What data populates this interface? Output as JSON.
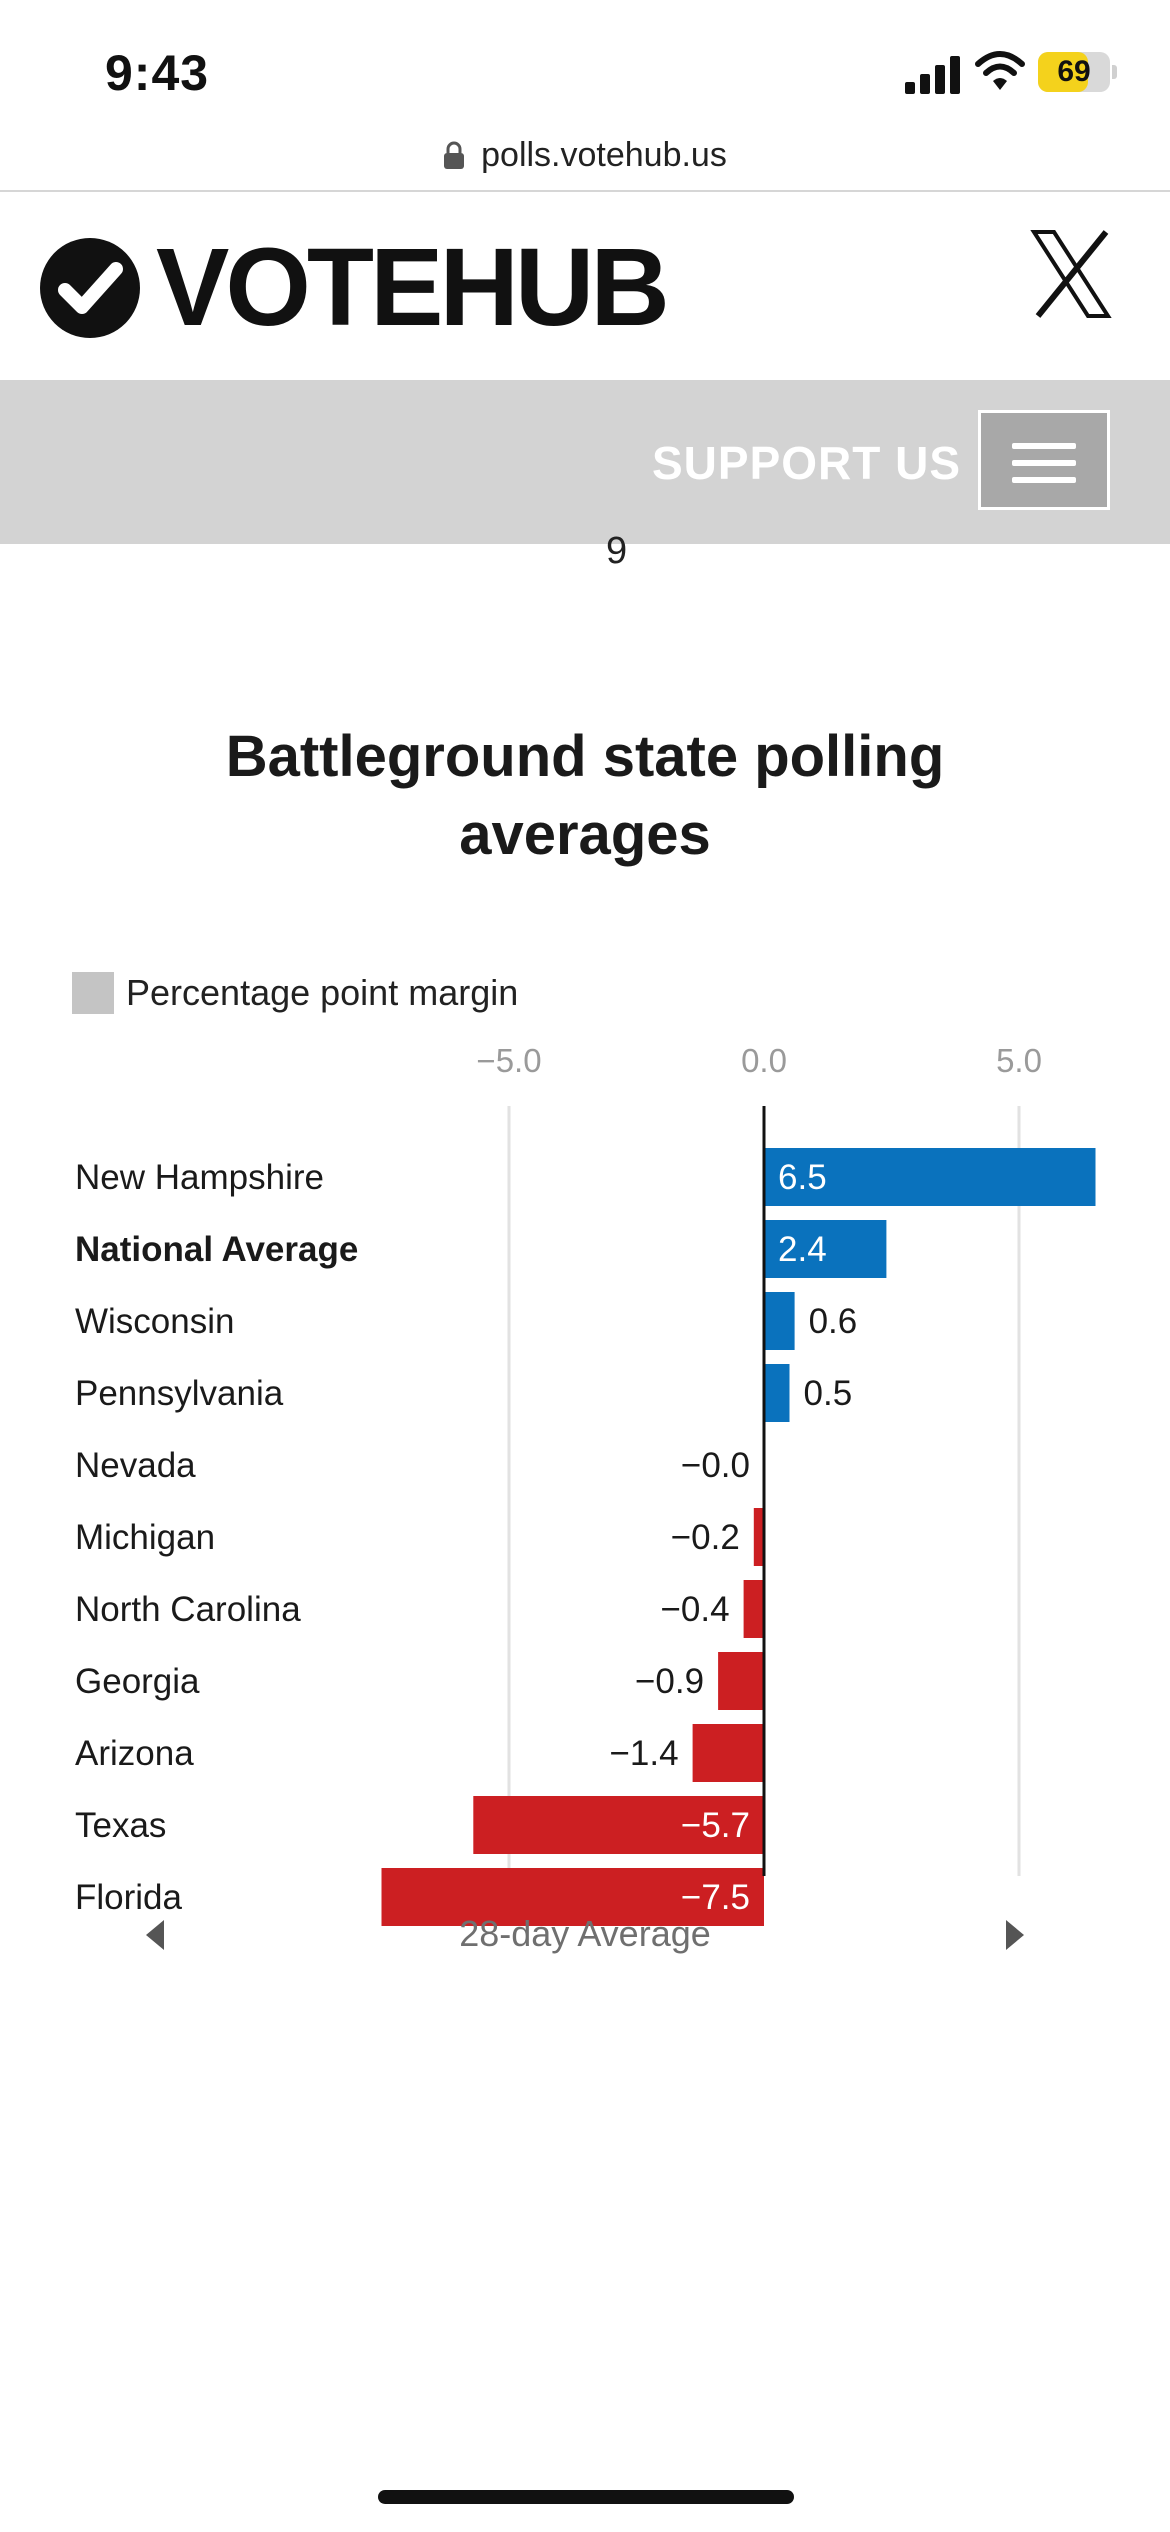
{
  "status_bar": {
    "time": "9:43",
    "battery": "69",
    "battery_level": 0.69,
    "icons": [
      "signal-icon",
      "wifi-icon",
      "battery-icon"
    ]
  },
  "browser": {
    "url": "polls.votehub.us",
    "icon": "lock-icon"
  },
  "header": {
    "logo_text": "VOTEHUB",
    "logo_icon": "check-circle-icon",
    "social_icon": "x-icon"
  },
  "nav": {
    "support_label": "SUPPORT US",
    "menu_icon": "hamburger-menu-icon"
  },
  "scroll_fragment": "9",
  "chart_data": {
    "type": "bar",
    "orientation": "horizontal",
    "title": "Battleground state polling averages",
    "legend": [
      {
        "label": "Percentage point margin",
        "color": "#c4c4c4"
      }
    ],
    "legend_placement": "top-left",
    "x_ticks": [
      "−5.0",
      "0.0",
      "5.0"
    ],
    "xlim": [
      -7.5,
      6.5
    ],
    "grid": true,
    "categories": [
      "New Hampshire",
      "National Average",
      "Wisconsin",
      "Pennsylvania",
      "Nevada",
      "Michigan",
      "North Carolina",
      "Georgia",
      "Arizona",
      "Texas",
      "Florida"
    ],
    "emphasized_category": "National Average",
    "values": [
      6.5,
      2.4,
      0.6,
      0.5,
      -0.0,
      -0.2,
      -0.4,
      -0.9,
      -1.4,
      -5.7,
      -7.5
    ],
    "value_labels": [
      "6.5",
      "2.4",
      "0.6",
      "0.5",
      "−0.0",
      "−0.2",
      "−0.4",
      "−0.9",
      "−1.4",
      "−5.7",
      "−7.5"
    ],
    "colors": {
      "positive": "#0a72bd",
      "negative": "#cc1f22"
    }
  },
  "period_nav": {
    "label": "28-day Average",
    "prev_icon": "caret-left-icon",
    "next_icon": "caret-right-icon"
  }
}
